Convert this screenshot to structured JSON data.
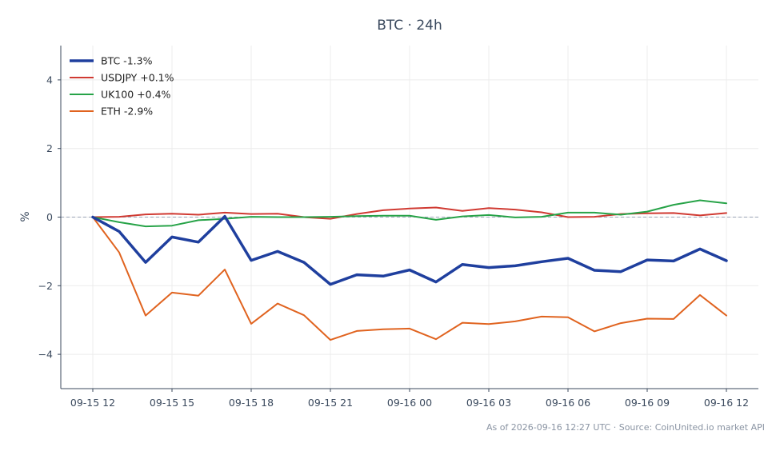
{
  "chart_data": {
    "type": "line",
    "title": "BTC · 24h",
    "xlabel": "",
    "ylabel": "%",
    "ylim": [
      -5,
      5
    ],
    "yticks": [
      4,
      2,
      0,
      -2,
      -4
    ],
    "ytick_labels": [
      "4",
      "2",
      "0",
      "−2",
      "−4"
    ],
    "x": [
      "09-15 12:00",
      "09-15 13:00",
      "09-15 14:00",
      "09-15 15:00",
      "09-15 16:00",
      "09-15 17:00",
      "09-15 18:00",
      "09-15 19:00",
      "09-15 20:00",
      "09-15 21:00",
      "09-15 22:00",
      "09-15 23:00",
      "09-16 00:00",
      "09-16 01:00",
      "09-16 02:00",
      "09-16 03:00",
      "09-16 04:00",
      "09-16 05:00",
      "09-16 06:00",
      "09-16 07:00",
      "09-16 08:00",
      "09-16 09:00",
      "09-16 10:00",
      "09-16 11:00",
      "09-16 12:00"
    ],
    "xtick_labels": [
      "09-15 12",
      "09-15 15",
      "09-15 18",
      "09-15 21",
      "09-16 00",
      "09-16 03",
      "09-16 06",
      "09-16 09",
      "09-16 12"
    ],
    "xtick_index": [
      0,
      3,
      6,
      9,
      12,
      15,
      18,
      21,
      24
    ],
    "grid": true,
    "zero_line": true,
    "legend_position": "top-left",
    "series": [
      {
        "name": "BTC -1.3%",
        "color": "#1f3f9e",
        "width": 3.5,
        "values": [
          0.0,
          -0.42,
          -1.32,
          -0.58,
          -0.73,
          0.02,
          -1.26,
          -1.0,
          -1.32,
          -1.96,
          -1.68,
          -1.72,
          -1.54,
          -1.89,
          -1.38,
          -1.47,
          -1.42,
          -1.3,
          -1.2,
          -1.55,
          -1.59,
          -1.25,
          -1.28,
          -0.93,
          -1.27
        ]
      },
      {
        "name": "USDJPY +0.1%",
        "color": "#d03a32",
        "width": 2,
        "values": [
          0.0,
          0.01,
          0.08,
          0.1,
          0.07,
          0.13,
          0.09,
          0.1,
          0.0,
          -0.05,
          0.09,
          0.2,
          0.25,
          0.28,
          0.18,
          0.26,
          0.22,
          0.14,
          0.0,
          0.01,
          0.09,
          0.11,
          0.12,
          0.05,
          0.12
        ]
      },
      {
        "name": "UK100 +0.4%",
        "color": "#27a348",
        "width": 2,
        "values": [
          0.0,
          -0.15,
          -0.27,
          -0.25,
          -0.09,
          -0.05,
          0.01,
          0.0,
          0.0,
          0.01,
          0.03,
          0.04,
          0.04,
          -0.08,
          0.02,
          0.06,
          -0.01,
          0.01,
          0.13,
          0.13,
          0.07,
          0.16,
          0.36,
          0.49,
          0.4
        ]
      },
      {
        "name": "ETH -2.9%",
        "color": "#e0631f",
        "width": 2,
        "values": [
          0.0,
          -1.03,
          -2.87,
          -2.2,
          -2.29,
          -1.53,
          -3.11,
          -2.52,
          -2.86,
          -3.58,
          -3.32,
          -3.27,
          -3.25,
          -3.56,
          -3.08,
          -3.12,
          -3.04,
          -2.9,
          -2.92,
          -3.33,
          -3.09,
          -2.96,
          -2.97,
          -2.27,
          -2.87
        ]
      }
    ],
    "footer": "As of 2026-09-16 12:27 UTC · Source: CoinUnited.io market API"
  }
}
